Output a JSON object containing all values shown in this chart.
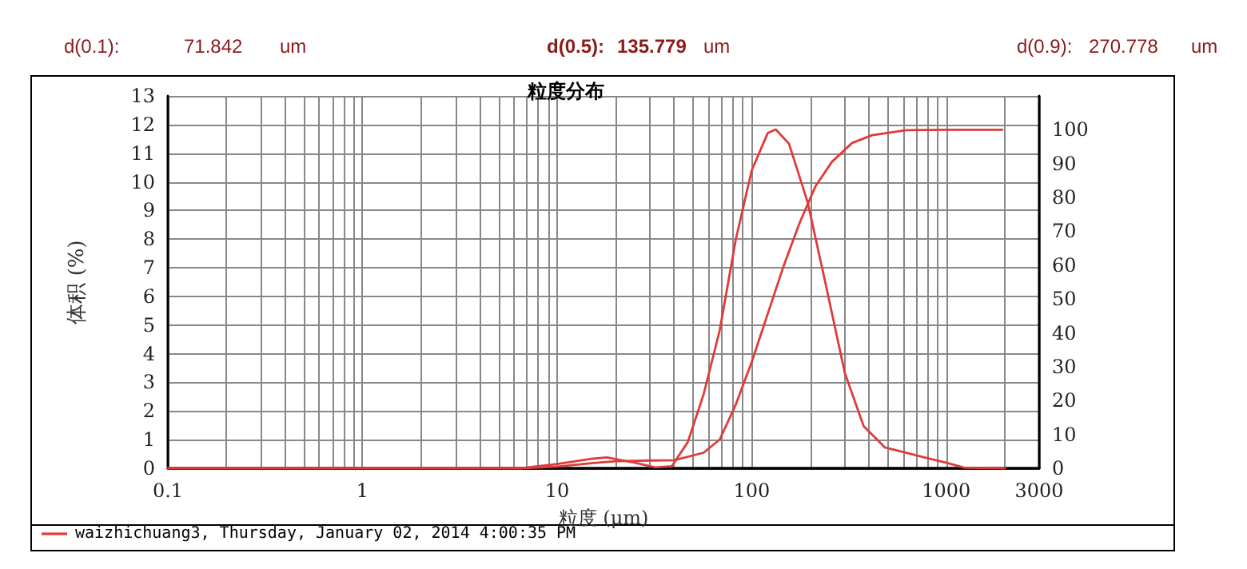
{
  "chart_data": {
    "type": "line",
    "title": "粒度分布",
    "xlabel": "粒度 (μm)",
    "ylabel": "体积 (%)",
    "annotations": [
      "d(0.1):",
      "71.842",
      "um",
      "d(0.5):",
      "135.779",
      "um",
      "d(0.9):",
      "270.778",
      "um"
    ],
    "log": "x",
    "xlim": [
      0.1,
      3000
    ],
    "xticks": [
      0.1,
      1,
      10,
      100,
      1000,
      3000
    ],
    "ylim": [
      0,
      13
    ],
    "yticks": [
      0,
      1,
      2,
      3,
      4,
      5,
      6,
      7,
      8,
      9,
      10,
      11,
      12,
      13
    ],
    "y2lim": [
      0,
      110
    ],
    "y2ticks": [
      0,
      10,
      20,
      30,
      40,
      50,
      60,
      70,
      80,
      90,
      100
    ],
    "grid": true,
    "legend": "bottom left",
    "marker": "none",
    "series": [
      {
        "name": "waizhichuang3, Thursday, January 02, 2014 4:00:35 PM",
        "color": "#e03a3a",
        "x": [
          0.1,
          6.5,
          10,
          15,
          18,
          25,
          32,
          38.8,
          46.9,
          56.6,
          68.5,
          82.8,
          100,
          120.8,
          133,
          155.5,
          194,
          242,
          301,
          376,
          483,
          623,
          802,
          1031,
          1245,
          2000
        ],
        "values": [
          0,
          0,
          0.15,
          0.33,
          0.38,
          0.2,
          0.03,
          0.07,
          0.91,
          2.58,
          4.82,
          7.98,
          10.4,
          11.7,
          11.83,
          11.33,
          9.28,
          6.31,
          3.33,
          1.47,
          0.73,
          0.54,
          0.35,
          0.17,
          0.02,
          0
        ]
      },
      {
        "axis": "y2",
        "color": "#e03a3a",
        "x": [
          0.1,
          6.5,
          10,
          15,
          20,
          30,
          40,
          56.6,
          68.5,
          82.8,
          100,
          120.8,
          146,
          176,
          213,
          258,
          328,
          417,
          623,
          1031,
          1941
        ],
        "values": [
          0,
          0,
          0.5,
          1.5,
          2.1,
          2.3,
          2.4,
          4.6,
          8.5,
          18.8,
          31.4,
          45.6,
          59.8,
          72.4,
          83.4,
          90.5,
          96.1,
          98.4,
          99.9,
          100,
          100
        ]
      }
    ]
  }
}
